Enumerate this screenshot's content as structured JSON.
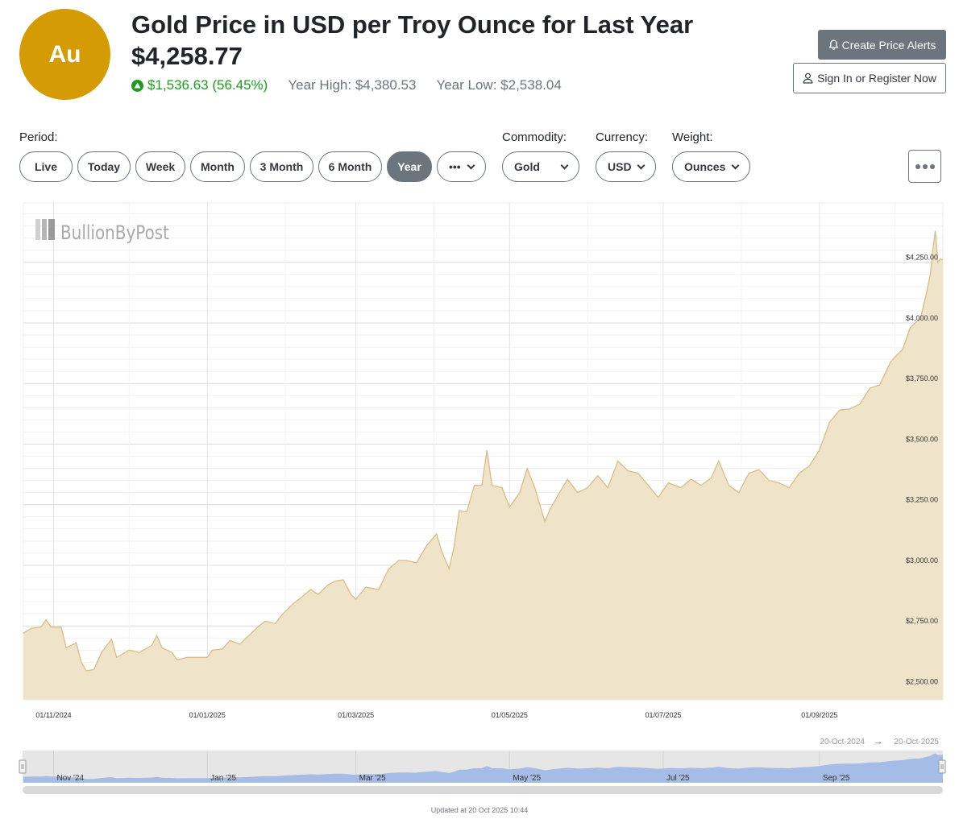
{
  "header": {
    "badge": "Au",
    "title": "Gold Price in USD per Troy Ounce for Last Year",
    "price": "$4,258.77",
    "change": "$1,536.63 (56.45%)",
    "year_high": "Year High: $4,380.53",
    "year_low": "Year Low: $2,538.04",
    "accent_color": "#d49b03",
    "up_color": "#1e9b1e",
    "up_icon": "triangle-up-circle-icon"
  },
  "actions": {
    "create_alerts": "Create Price Alerts",
    "create_alerts_icon": "bell-icon",
    "sign_in": "Sign In or Register Now",
    "sign_in_icon": "user-icon"
  },
  "controls": {
    "period_label": "Period:",
    "periods": [
      "Live",
      "Today",
      "Week",
      "Month",
      "3 Month",
      "6 Month",
      "Year"
    ],
    "active_period": "Year",
    "period_more": "•••",
    "commodity_label": "Commodity:",
    "commodity": "Gold",
    "currency_label": "Currency:",
    "currency": "USD",
    "weight_label": "Weight:",
    "weight": "Ounces",
    "more_icon": "ellipsis-icon"
  },
  "chart_data": {
    "type": "area",
    "watermark": "BullionByPost",
    "x_tick_labels": [
      "01/11/2024",
      "01/01/2025",
      "01/03/2025",
      "01/05/2025",
      "01/07/2025",
      "01/09/2025"
    ],
    "y_tick_labels": [
      "$2,500.00",
      "$2,750.00",
      "$3,000.00",
      "$3,250.00",
      "$3,500.00",
      "$3,750.00",
      "$4,000.00",
      "$4,250.00"
    ],
    "y_ticks": [
      2500,
      2750,
      3000,
      3250,
      3500,
      3750,
      4000,
      4250
    ],
    "ylim": [
      2445,
      4495
    ],
    "xlim": [
      "2024-10-20",
      "2025-10-20"
    ],
    "series": [
      {
        "values": [
          [
            "2024-10-20",
            2720
          ],
          [
            "2024-10-23",
            2740
          ],
          [
            "2024-10-27",
            2745
          ],
          [
            "2024-10-29",
            2775
          ],
          [
            "2024-10-31",
            2745
          ],
          [
            "2024-11-04",
            2745
          ],
          [
            "2024-11-06",
            2660
          ],
          [
            "2024-11-10",
            2680
          ],
          [
            "2024-11-12",
            2600
          ],
          [
            "2024-11-14",
            2565
          ],
          [
            "2024-11-17",
            2570
          ],
          [
            "2024-11-20",
            2640
          ],
          [
            "2024-11-24",
            2695
          ],
          [
            "2024-11-26",
            2620
          ],
          [
            "2024-12-01",
            2650
          ],
          [
            "2024-12-05",
            2640
          ],
          [
            "2024-12-10",
            2670
          ],
          [
            "2024-12-12",
            2710
          ],
          [
            "2024-12-14",
            2660
          ],
          [
            "2024-12-18",
            2640
          ],
          [
            "2024-12-20",
            2610
          ],
          [
            "2024-12-24",
            2620
          ],
          [
            "2024-12-28",
            2620
          ],
          [
            "2025-01-01",
            2620
          ],
          [
            "2025-01-03",
            2650
          ],
          [
            "2025-01-07",
            2655
          ],
          [
            "2025-01-10",
            2690
          ],
          [
            "2025-01-14",
            2675
          ],
          [
            "2025-01-17",
            2705
          ],
          [
            "2025-01-21",
            2745
          ],
          [
            "2025-01-24",
            2770
          ],
          [
            "2025-01-28",
            2760
          ],
          [
            "2025-01-31",
            2800
          ],
          [
            "2025-02-04",
            2840
          ],
          [
            "2025-02-07",
            2865
          ],
          [
            "2025-02-11",
            2900
          ],
          [
            "2025-02-14",
            2880
          ],
          [
            "2025-02-18",
            2920
          ],
          [
            "2025-02-21",
            2935
          ],
          [
            "2025-02-24",
            2940
          ],
          [
            "2025-02-27",
            2880
          ],
          [
            "2025-03-01",
            2860
          ],
          [
            "2025-03-05",
            2910
          ],
          [
            "2025-03-10",
            2900
          ],
          [
            "2025-03-14",
            2985
          ],
          [
            "2025-03-18",
            3020
          ],
          [
            "2025-03-21",
            3020
          ],
          [
            "2025-03-25",
            3010
          ],
          [
            "2025-03-29",
            3080
          ],
          [
            "2025-04-02",
            3130
          ],
          [
            "2025-04-04",
            3060
          ],
          [
            "2025-04-07",
            2985
          ],
          [
            "2025-04-09",
            3080
          ],
          [
            "2025-04-11",
            3225
          ],
          [
            "2025-04-14",
            3220
          ],
          [
            "2025-04-17",
            3330
          ],
          [
            "2025-04-20",
            3330
          ],
          [
            "2025-04-22",
            3475
          ],
          [
            "2025-04-24",
            3330
          ],
          [
            "2025-04-28",
            3320
          ],
          [
            "2025-05-01",
            3240
          ],
          [
            "2025-05-05",
            3300
          ],
          [
            "2025-05-08",
            3400
          ],
          [
            "2025-05-11",
            3320
          ],
          [
            "2025-05-15",
            3180
          ],
          [
            "2025-05-17",
            3230
          ],
          [
            "2025-05-20",
            3285
          ],
          [
            "2025-05-24",
            3355
          ],
          [
            "2025-05-28",
            3300
          ],
          [
            "2025-06-01",
            3320
          ],
          [
            "2025-06-05",
            3370
          ],
          [
            "2025-06-09",
            3320
          ],
          [
            "2025-06-13",
            3430
          ],
          [
            "2025-06-17",
            3390
          ],
          [
            "2025-06-21",
            3380
          ],
          [
            "2025-06-25",
            3330
          ],
          [
            "2025-06-29",
            3280
          ],
          [
            "2025-07-03",
            3340
          ],
          [
            "2025-07-08",
            3320
          ],
          [
            "2025-07-12",
            3355
          ],
          [
            "2025-07-16",
            3330
          ],
          [
            "2025-07-20",
            3360
          ],
          [
            "2025-07-23",
            3430
          ],
          [
            "2025-07-27",
            3330
          ],
          [
            "2025-07-31",
            3300
          ],
          [
            "2025-08-04",
            3380
          ],
          [
            "2025-08-08",
            3395
          ],
          [
            "2025-08-12",
            3350
          ],
          [
            "2025-08-16",
            3340
          ],
          [
            "2025-08-20",
            3320
          ],
          [
            "2025-08-24",
            3380
          ],
          [
            "2025-08-28",
            3410
          ],
          [
            "2025-09-01",
            3475
          ],
          [
            "2025-09-05",
            3590
          ],
          [
            "2025-09-09",
            3640
          ],
          [
            "2025-09-13",
            3645
          ],
          [
            "2025-09-17",
            3665
          ],
          [
            "2025-09-21",
            3730
          ],
          [
            "2025-09-25",
            3745
          ],
          [
            "2025-09-29",
            3835
          ],
          [
            "2025-10-01",
            3860
          ],
          [
            "2025-10-04",
            3890
          ],
          [
            "2025-10-07",
            3980
          ],
          [
            "2025-10-09",
            4000
          ],
          [
            "2025-10-11",
            4015
          ],
          [
            "2025-10-13",
            4100
          ],
          [
            "2025-10-15",
            4200
          ],
          [
            "2025-10-16",
            4300
          ],
          [
            "2025-10-17",
            4380
          ],
          [
            "2025-10-18",
            4250
          ],
          [
            "2025-10-19",
            4265
          ],
          [
            "2025-10-20",
            4258
          ]
        ]
      }
    ],
    "line_color": "#d9bd86",
    "fill_color": "#efe3c9",
    "grid": true,
    "navigator": {
      "range_start": "20-Oct-2024",
      "range_end": "20-Oct-2025",
      "range_arrow": "→",
      "labels": [
        "Nov '24",
        "Jan '25",
        "Mar '25",
        "May '25",
        "Jul '25",
        "Sep '25"
      ],
      "fill_color": "#a5bde6"
    }
  },
  "footer": {
    "updated": "Updated at 20 Oct 2025 10:44"
  }
}
